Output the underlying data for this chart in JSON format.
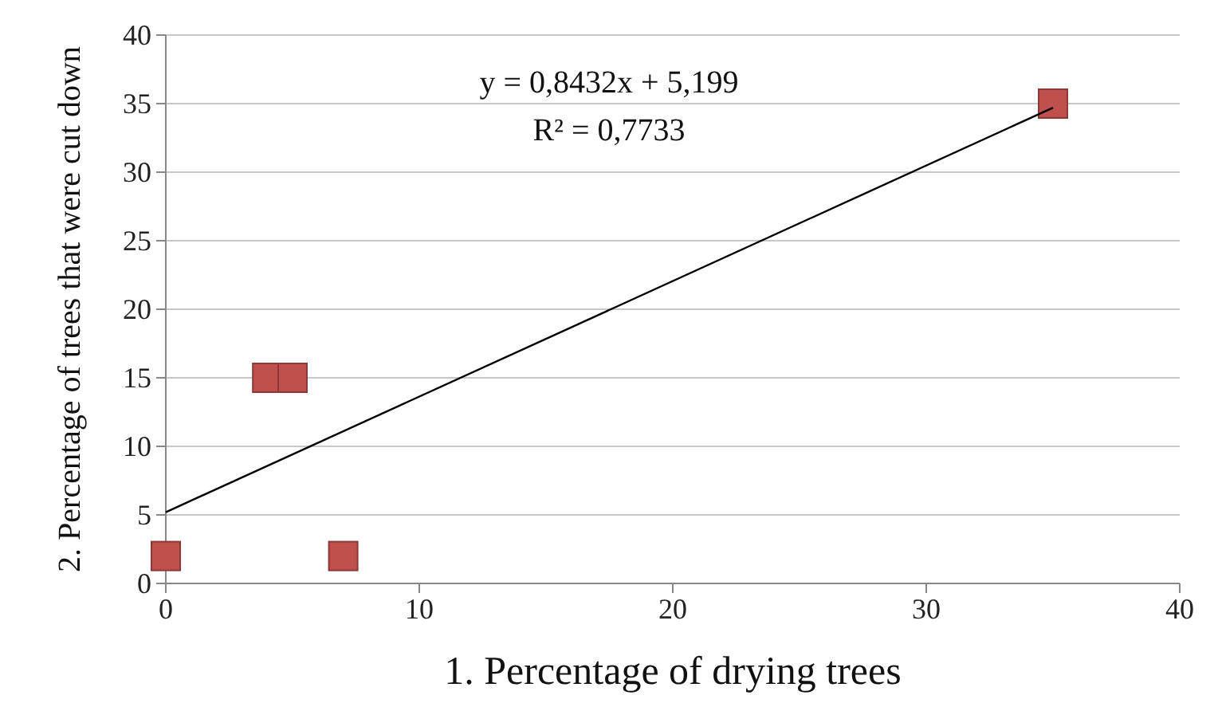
{
  "chart_data": {
    "type": "scatter",
    "xlabel": "1. Percentage of drying trees",
    "ylabel": "2. Percentage of trees that were cut down",
    "annotations": [
      "y = 0,8432x  + 5,199",
      "R² = 0,7733"
    ],
    "series": [
      {
        "color": "#c0504d",
        "x": [
          0,
          4,
          5,
          7,
          35
        ],
        "values": [
          2,
          15,
          15,
          2,
          35
        ]
      },
      {
        "type": "line",
        "marker": "none",
        "color": "#000000",
        "x": [
          0,
          35
        ],
        "values": [
          5.2,
          34.7
        ]
      }
    ],
    "xlim": [
      0,
      40
    ],
    "xticks": [
      0,
      10,
      20,
      30,
      40
    ],
    "ylim": [
      0,
      40
    ],
    "yticks": [
      0,
      5,
      10,
      15,
      20,
      25,
      30,
      35,
      40
    ],
    "grid": "y",
    "marker": "square",
    "line_style": "solid"
  }
}
